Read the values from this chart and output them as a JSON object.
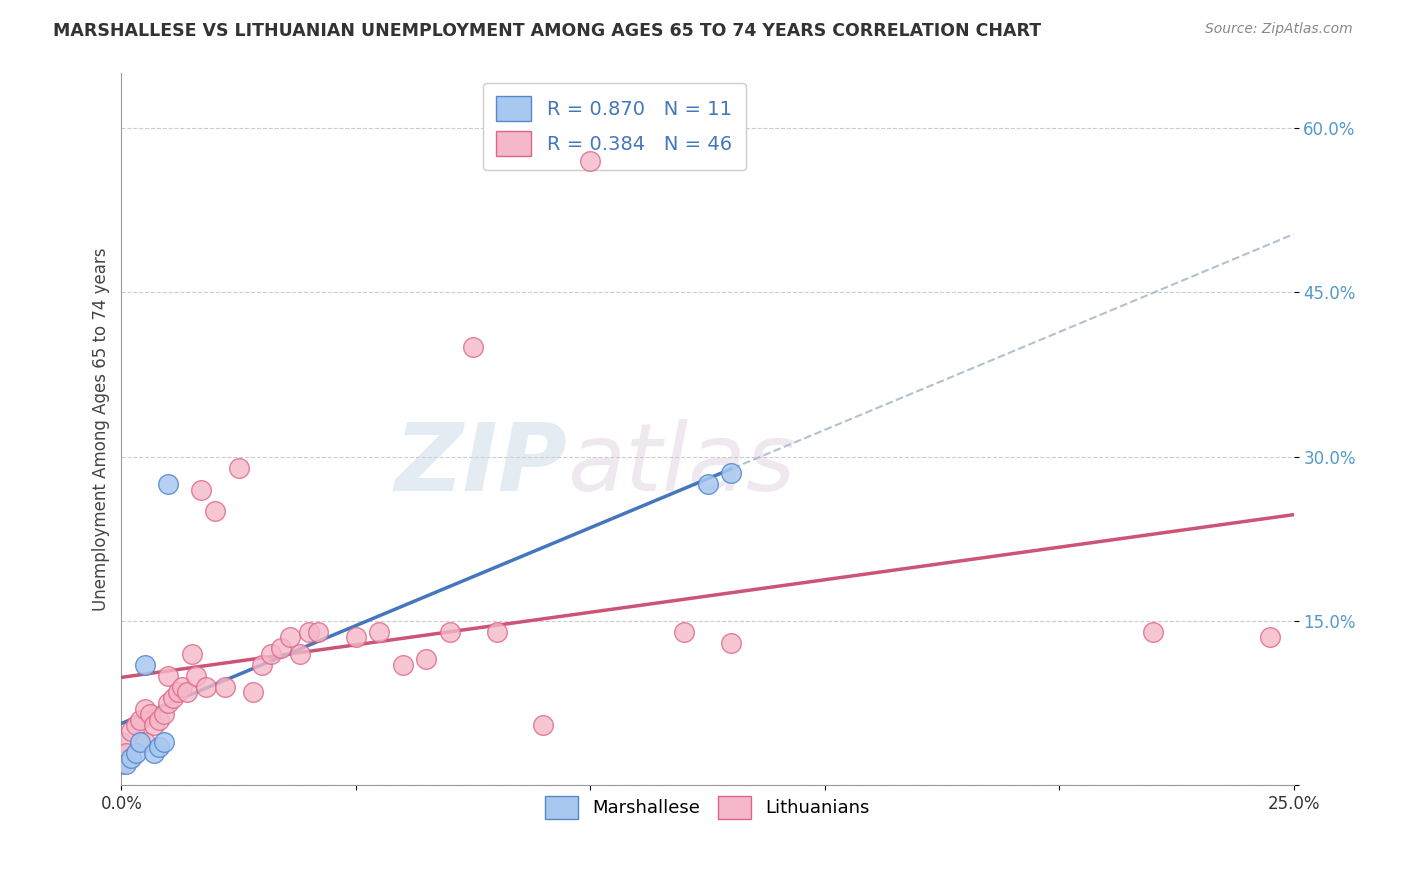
{
  "title": "MARSHALLESE VS LITHUANIAN UNEMPLOYMENT AMONG AGES 65 TO 74 YEARS CORRELATION CHART",
  "source": "Source: ZipAtlas.com",
  "ylabel": "Unemployment Among Ages 65 to 74 years",
  "xlim": [
    0,
    0.25
  ],
  "ylim": [
    0,
    0.65
  ],
  "xticks": [
    0.0,
    0.05,
    0.1,
    0.15,
    0.2,
    0.25
  ],
  "xticklabels": [
    "0.0%",
    "",
    "",
    "",
    "",
    "25.0%"
  ],
  "yticks": [
    0.0,
    0.15,
    0.3,
    0.45,
    0.6
  ],
  "yticklabels": [
    "",
    "15.0%",
    "30.0%",
    "45.0%",
    "60.0%"
  ],
  "marshallese_color": "#a8c8f0",
  "marshallese_edge": "#5588cc",
  "marshallese_line_color": "#4477bb",
  "lithuanian_color": "#f5b8c8",
  "lithuanian_edge": "#dd6688",
  "lithuanian_line_color": "#cc5577",
  "dashed_color": "#aabbcc",
  "marshallese_R": 0.87,
  "marshallese_N": 11,
  "lithuanian_R": 0.384,
  "lithuanian_N": 46,
  "marshallese_x": [
    0.001,
    0.002,
    0.003,
    0.004,
    0.005,
    0.007,
    0.008,
    0.009,
    0.01,
    0.125,
    0.13
  ],
  "marshallese_y": [
    0.02,
    0.025,
    0.03,
    0.04,
    0.11,
    0.03,
    0.035,
    0.04,
    0.275,
    0.275,
    0.285
  ],
  "lithuanian_x": [
    0.0,
    0.0,
    0.001,
    0.002,
    0.003,
    0.004,
    0.005,
    0.005,
    0.006,
    0.007,
    0.008,
    0.009,
    0.01,
    0.01,
    0.011,
    0.012,
    0.013,
    0.014,
    0.015,
    0.016,
    0.017,
    0.018,
    0.02,
    0.022,
    0.025,
    0.028,
    0.03,
    0.032,
    0.034,
    0.036,
    0.038,
    0.04,
    0.042,
    0.05,
    0.055,
    0.06,
    0.065,
    0.07,
    0.075,
    0.08,
    0.09,
    0.1,
    0.12,
    0.13,
    0.22,
    0.245
  ],
  "lithuanian_y": [
    0.02,
    0.04,
    0.03,
    0.05,
    0.055,
    0.06,
    0.04,
    0.07,
    0.065,
    0.055,
    0.06,
    0.065,
    0.075,
    0.1,
    0.08,
    0.085,
    0.09,
    0.085,
    0.12,
    0.1,
    0.27,
    0.09,
    0.25,
    0.09,
    0.29,
    0.085,
    0.11,
    0.12,
    0.125,
    0.135,
    0.12,
    0.14,
    0.14,
    0.135,
    0.14,
    0.11,
    0.115,
    0.14,
    0.4,
    0.14,
    0.055,
    0.57,
    0.14,
    0.13,
    0.14,
    0.135
  ],
  "watermark_zip": "ZIP",
  "watermark_atlas": "atlas",
  "background_color": "#ffffff",
  "grid_color": "#cccccc"
}
